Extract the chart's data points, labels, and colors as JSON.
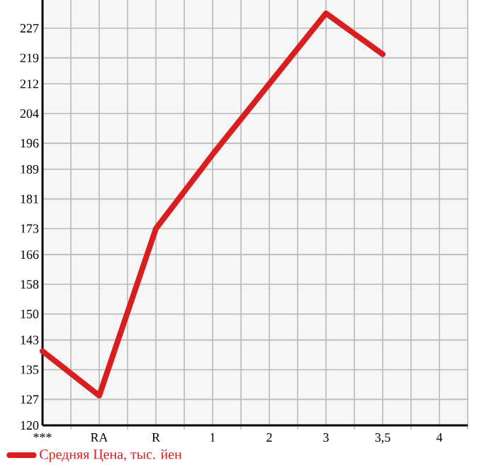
{
  "chart_data": {
    "type": "line",
    "categories": [
      "***",
      "RA",
      "R",
      "1",
      "2",
      "3",
      "3,5",
      "4"
    ],
    "series": [
      {
        "name": "Средняя Цена, тыс. йен",
        "color": "#d81e1e",
        "values": [
          140,
          128,
          173,
          193,
          212,
          231,
          220,
          null
        ]
      }
    ],
    "ylim": [
      120,
      234.6
    ],
    "yticks": [
      120,
      127,
      135,
      143,
      150,
      158,
      166,
      173,
      181,
      189,
      196,
      204,
      212,
      219,
      227
    ],
    "grid": true,
    "legend": "bottom left",
    "marker": "none",
    "line_style": "solid"
  }
}
